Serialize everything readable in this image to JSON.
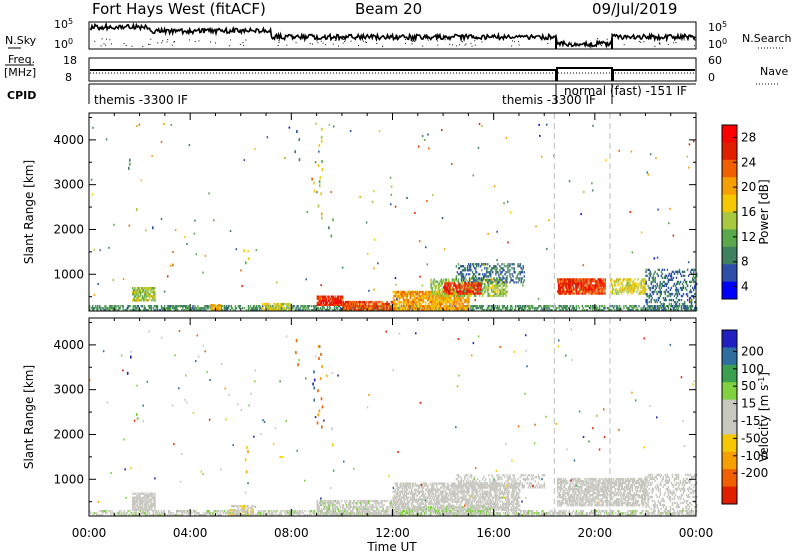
{
  "header": {
    "title": "Fort Hays West (fitACF)",
    "beam": "Beam 20",
    "date": "09/Jul/2019"
  },
  "panels": {
    "nsky_label": "N.Sky",
    "nsearch_label": "N.Search",
    "nsky_ticks": [
      "10^5",
      "10^0"
    ],
    "nsearch_ticks": [
      "10^5",
      "10^0"
    ],
    "freq_label": "Freq.",
    "freq_unit": "[MHz]",
    "freq_ticks": [
      "18",
      "8"
    ],
    "nave_label": "Nave",
    "nave_ticks": [
      "60",
      "0"
    ],
    "cpid_label": "CPID",
    "cpid_texts": [
      "themis -3300 IF",
      "themis -3300 IF",
      "normal (fast) -151 IF"
    ]
  },
  "chart_data": [
    {
      "type": "heatmap",
      "name": "power",
      "ylabel": "Slant Range [km]",
      "xlabel": "Time UT",
      "xlim": [
        0,
        24
      ],
      "ylim": [
        180,
        4600
      ],
      "x_ticks": [
        "00:00",
        "04:00",
        "08:00",
        "12:00",
        "16:00",
        "20:00",
        "00:00"
      ],
      "y_ticks": [
        "1000",
        "2000",
        "3000",
        "4000"
      ],
      "y_tick_values": [
        1000,
        2000,
        3000,
        4000
      ],
      "colorbar": {
        "label": "Power [dB]",
        "ticks": [
          "4",
          "8",
          "12",
          "16",
          "20",
          "24",
          "28"
        ],
        "tick_values": [
          4,
          8,
          12,
          16,
          20,
          24,
          28
        ],
        "range": [
          2,
          30
        ],
        "colors": [
          "#0000ff",
          "#2e4fa8",
          "#3f8060",
          "#5aa84c",
          "#a8c840",
          "#f5c800",
          "#f5a000",
          "#f06000",
          "#e01e00",
          "#ff0000"
        ]
      },
      "dashed_times": [
        18.4,
        20.6
      ],
      "regions": [
        {
          "t": [
            0.0,
            24.0
          ],
          "r": [
            180,
            300
          ],
          "value": 10,
          "density": 0.55
        },
        {
          "t": [
            1.7,
            2.6
          ],
          "r": [
            400,
            700
          ],
          "value": 14,
          "density": 0.8
        },
        {
          "t": [
            4.8,
            5.2
          ],
          "r": [
            200,
            320
          ],
          "value": 20,
          "density": 0.7
        },
        {
          "t": [
            6.8,
            8.0
          ],
          "r": [
            180,
            330
          ],
          "value": 16,
          "density": 0.6
        },
        {
          "t": [
            9.0,
            10.0
          ],
          "r": [
            300,
            520
          ],
          "value": 26,
          "density": 0.9
        },
        {
          "t": [
            10.0,
            12.0
          ],
          "r": [
            180,
            400
          ],
          "value": 24,
          "density": 0.75
        },
        {
          "t": [
            12.0,
            15.0
          ],
          "r": [
            180,
            620
          ],
          "value": 20,
          "density": 0.7
        },
        {
          "t": [
            13.5,
            16.5
          ],
          "r": [
            500,
            900
          ],
          "value": 14,
          "density": 0.55
        },
        {
          "t": [
            14.5,
            17.2
          ],
          "r": [
            800,
            1250
          ],
          "value": 8,
          "density": 0.35
        },
        {
          "t": [
            14.0,
            15.5
          ],
          "r": [
            550,
            800
          ],
          "value": 26,
          "density": 0.6
        },
        {
          "t": [
            18.5,
            20.4
          ],
          "r": [
            550,
            900
          ],
          "value": 25,
          "density": 0.8
        },
        {
          "t": [
            20.6,
            22.0
          ],
          "r": [
            550,
            900
          ],
          "value": 16,
          "density": 0.55
        },
        {
          "t": [
            22.0,
            24.0
          ],
          "r": [
            180,
            1100
          ],
          "value": 8,
          "density": 0.3
        }
      ],
      "streaks": [
        {
          "t": 1.6,
          "r": [
            3400,
            3900
          ],
          "value": 10
        },
        {
          "t": 1.95,
          "r": [
            2300,
            2550
          ],
          "value": 14
        },
        {
          "t": 2.4,
          "r": [
            1800,
            2100
          ],
          "value": 8
        },
        {
          "t": 8.2,
          "r": [
            3500,
            4400
          ],
          "value": 8
        },
        {
          "t": 8.85,
          "r": [
            2800,
            3500
          ],
          "value": 20
        },
        {
          "t": 9.1,
          "r": [
            2200,
            4300
          ],
          "value": 16
        },
        {
          "t": 9.55,
          "r": [
            1800,
            2300
          ],
          "value": 12
        },
        {
          "t": 6.2,
          "r": [
            1200,
            1800
          ],
          "value": 16
        }
      ]
    },
    {
      "type": "heatmap",
      "name": "velocity",
      "ylabel": "Slant Range [km]",
      "xlabel": "Time UT",
      "xlim": [
        0,
        24
      ],
      "ylim": [
        180,
        4600
      ],
      "x_ticks": [
        "00:00",
        "04:00",
        "08:00",
        "12:00",
        "16:00",
        "20:00",
        "00:00"
      ],
      "y_ticks": [
        "1000",
        "2000",
        "3000",
        "4000"
      ],
      "y_tick_values": [
        1000,
        2000,
        3000,
        4000
      ],
      "colorbar": {
        "label": "Velocity [m s^-1]",
        "ticks": [
          "200",
          "100",
          "50",
          "15",
          "-15",
          "-50",
          "-100",
          "-200"
        ],
        "tick_values": [
          200,
          100,
          50,
          15,
          -15,
          -50,
          -100,
          -200
        ],
        "range": [
          -250,
          250
        ],
        "colors": [
          "#e01e00",
          "#f06000",
          "#f5a000",
          "#f5c800",
          "#c8c8c0",
          "#c8c8c0",
          "#80d040",
          "#3aa050",
          "#2e6ea0",
          "#2020c0"
        ]
      },
      "dashed_times": [
        18.4,
        20.6
      ],
      "regions": [
        {
          "t": [
            0.0,
            24.0
          ],
          "r": [
            180,
            300
          ],
          "value": 30,
          "density": 0.5
        },
        {
          "t": [
            1.7,
            2.6
          ],
          "r": [
            300,
            700
          ],
          "value": 0,
          "density": 0.75
        },
        {
          "t": [
            5.5,
            6.5
          ],
          "r": [
            200,
            420
          ],
          "value": -40,
          "density": 0.5
        },
        {
          "t": [
            9.0,
            12.0
          ],
          "r": [
            180,
            500
          ],
          "value": 25,
          "density": 0.6
        },
        {
          "t": [
            12.0,
            17.0
          ],
          "r": [
            300,
            900
          ],
          "value": 0,
          "density": 0.6
        },
        {
          "t": [
            12.0,
            16.0
          ],
          "r": [
            180,
            400
          ],
          "value": 40,
          "density": 0.5
        },
        {
          "t": [
            14.5,
            18.0
          ],
          "r": [
            800,
            1100
          ],
          "value": 0,
          "density": 0.35
        },
        {
          "t": [
            18.5,
            22.0
          ],
          "r": [
            400,
            1000
          ],
          "value": 0,
          "density": 0.65
        },
        {
          "t": [
            22.0,
            24.0
          ],
          "r": [
            180,
            1100
          ],
          "value": -20,
          "density": 0.3
        }
      ],
      "streaks": [
        {
          "t": 1.6,
          "r": [
            3400,
            3900
          ],
          "value": 200
        },
        {
          "t": 1.95,
          "r": [
            2300,
            2550
          ],
          "value": 60
        },
        {
          "t": 8.2,
          "r": [
            3500,
            4400
          ],
          "value": -200
        },
        {
          "t": 8.85,
          "r": [
            2800,
            3500
          ],
          "value": 200
        },
        {
          "t": 9.1,
          "r": [
            2200,
            4300
          ],
          "value": -150
        },
        {
          "t": 9.55,
          "r": [
            1800,
            2300
          ],
          "value": -60
        },
        {
          "t": 6.2,
          "r": [
            1200,
            1800
          ],
          "value": -100
        }
      ]
    }
  ]
}
